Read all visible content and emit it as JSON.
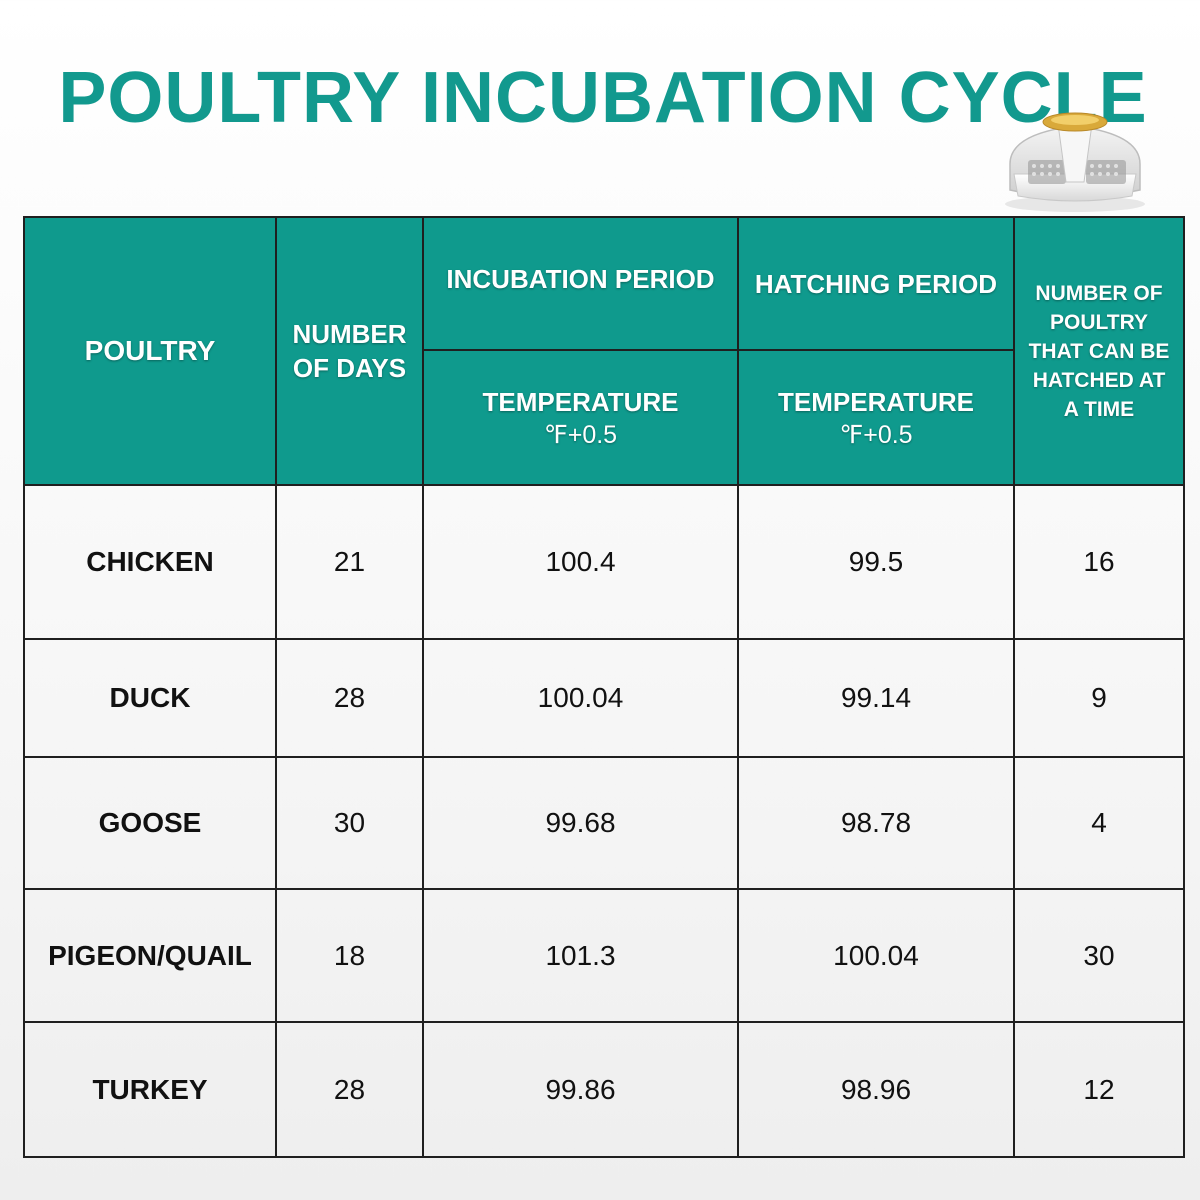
{
  "title": "POULTRY INCUBATION CYCLE",
  "accent_color": "#0f9a8d",
  "product_image": "egg-incubator-icon",
  "table": {
    "headers": {
      "poultry": "POULTRY",
      "number_of_days": "NUMBER OF DAYS",
      "incubation_period": "INCUBATION PERIOD",
      "hatching_period": "HATCHING PERIOD",
      "number_hatched": "NUMBER OF POULTRY THAT CAN BE HATCHED AT A TIME",
      "incubation_temperature": "TEMPERATURE",
      "incubation_temperature_unit": "℉+0.5",
      "hatching_temperature": "TEMPERATURE",
      "hatching_temperature_unit": "℉+0.5"
    },
    "rows": [
      {
        "poultry": "CHICKEN",
        "days": "21",
        "incubation_temp": "100.4",
        "hatching_temp": "99.5",
        "count": "16"
      },
      {
        "poultry": "DUCK",
        "days": "28",
        "incubation_temp": "100.04",
        "hatching_temp": "99.14",
        "count": "9"
      },
      {
        "poultry": "GOOSE",
        "days": "30",
        "incubation_temp": "99.68",
        "hatching_temp": "98.78",
        "count": "4"
      },
      {
        "poultry": "PIGEON/QUAIL",
        "days": "18",
        "incubation_temp": "101.3",
        "hatching_temp": "100.04",
        "count": "30"
      },
      {
        "poultry": "TURKEY",
        "days": "28",
        "incubation_temp": "99.86",
        "hatching_temp": "98.96",
        "count": "12"
      }
    ]
  }
}
